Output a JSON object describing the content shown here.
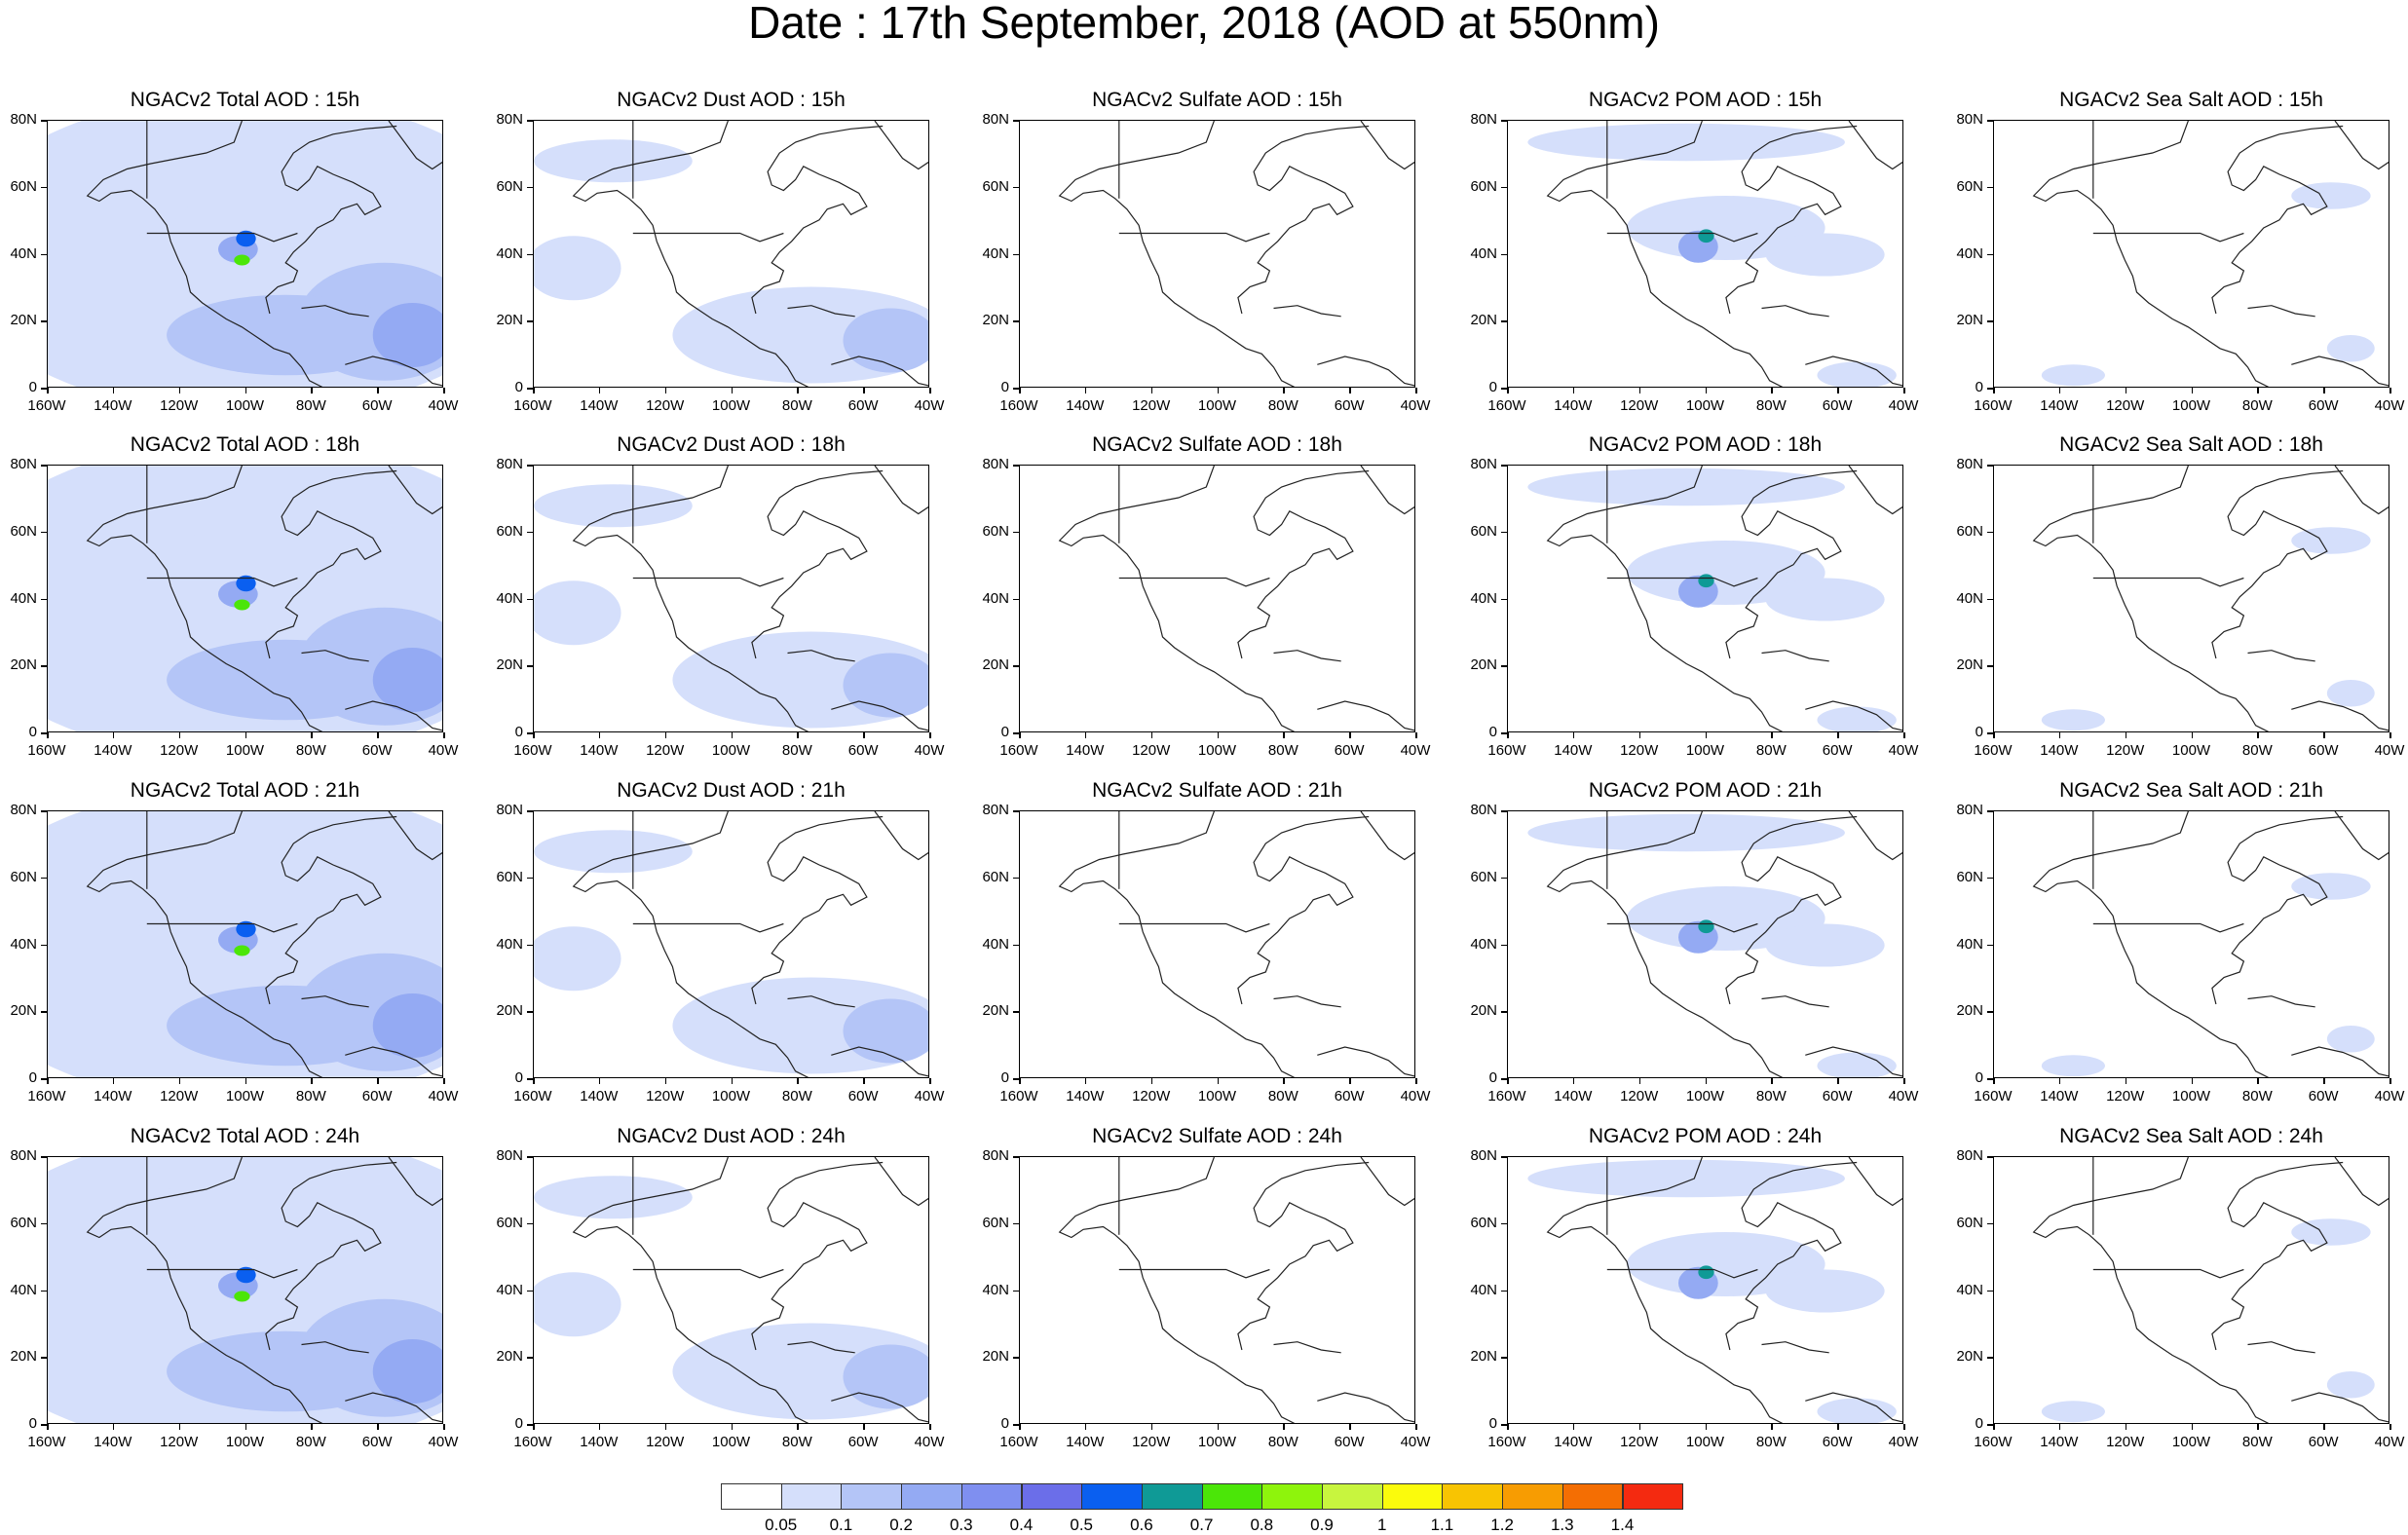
{
  "title": "Date : 17th September, 2018 (AOD at 550nm)",
  "lat_ticks": [
    "80N",
    "60N",
    "40N",
    "20N",
    "0"
  ],
  "lon_ticks": [
    "160W",
    "140W",
    "120W",
    "100W",
    "80W",
    "60W",
    "40W"
  ],
  "columns": [
    {
      "species": "NGACv2 Total AOD",
      "intensity": "high"
    },
    {
      "species": "NGACv2 Dust AOD",
      "intensity": "dust"
    },
    {
      "species": "NGACv2 Sulfate AOD",
      "intensity": "none"
    },
    {
      "species": "NGACv2 POM AOD",
      "intensity": "pom"
    },
    {
      "species": "NGACv2 Sea Salt AOD",
      "intensity": "low"
    }
  ],
  "rows": [
    "15h",
    "18h",
    "21h",
    "24h"
  ],
  "panel_titles": [
    [
      "NGACv2 Total AOD : 15h",
      "NGACv2 Dust AOD : 15h",
      "NGACv2 Sulfate AOD : 15h",
      "NGACv2 POM AOD : 15h",
      "NGACv2 Sea Salt AOD : 15h"
    ],
    [
      "NGACv2 Total AOD : 18h",
      "NGACv2 Dust AOD : 18h",
      "NGACv2 Sulfate AOD : 18h",
      "NGACv2 POM AOD : 18h",
      "NGACv2 Sea Salt AOD : 18h"
    ],
    [
      "NGACv2 Total AOD : 21h",
      "NGACv2 Dust AOD : 21h",
      "NGACv2 Sulfate AOD : 21h",
      "NGACv2 POM AOD : 21h",
      "NGACv2 Sea Salt AOD : 21h"
    ],
    [
      "NGACv2 Total AOD : 24h",
      "NGACv2 Dust AOD : 24h",
      "NGACv2 Sulfate AOD : 24h",
      "NGACv2 POM AOD : 24h",
      "NGACv2 Sea Salt  AOD : 24h"
    ]
  ],
  "colorbar": {
    "labels": [
      "0.05",
      "0.1",
      "0.2",
      "0.3",
      "0.4",
      "0.5",
      "0.6",
      "0.7",
      "0.8",
      "0.9",
      "1",
      "1.1",
      "1.2",
      "1.3",
      "1.4"
    ],
    "colors": [
      "#ffffff",
      "#d5dffb",
      "#b4c5f7",
      "#94aaf3",
      "#7f8ff0",
      "#6b6ee9",
      "#0a5ff0",
      "#0f9a96",
      "#4be608",
      "#8ef40c",
      "#c8f53e",
      "#fbfb0c",
      "#f8c402",
      "#f79c02",
      "#f46e03",
      "#f42a10"
    ]
  }
}
